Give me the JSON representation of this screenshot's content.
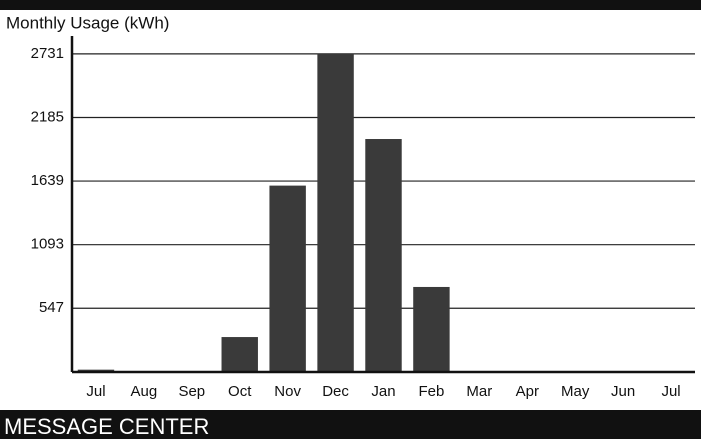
{
  "chart_data": {
    "type": "bar",
    "title": "Monthly Usage (kWh)",
    "categories": [
      "Jul",
      "Aug",
      "Sep",
      "Oct",
      "Nov",
      "Dec",
      "Jan",
      "Feb",
      "Mar",
      "Apr",
      "May",
      "Jun",
      "Jul"
    ],
    "values": [
      20,
      0,
      0,
      300,
      1600,
      2731,
      2000,
      730,
      0,
      0,
      0,
      0,
      0
    ],
    "color": "#3a3a3a",
    "ylim": [
      0,
      2850
    ],
    "yticks": [
      547,
      1093,
      1639,
      2185,
      2731
    ],
    "grid": true
  },
  "footer": "MESSAGE CENTER"
}
